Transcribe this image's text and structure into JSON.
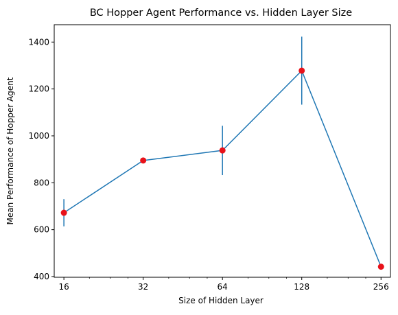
{
  "chart_data": {
    "type": "line",
    "title": "BC Hopper Agent Performance vs. Hidden Layer Size",
    "xlabel": "Size of Hidden Layer",
    "ylabel": "Mean Performance of Hopper Agent",
    "x_scale": "log2",
    "x": [
      16,
      32,
      64,
      128,
      256
    ],
    "x_tick_labels": [
      "16",
      "32",
      "64",
      "128",
      "256"
    ],
    "y_ticks": [
      400,
      600,
      800,
      1000,
      1200,
      1400
    ],
    "y_tick_labels": [
      "400",
      "600",
      "800",
      "1000",
      "1200",
      "1400"
    ],
    "xlim": [
      14.7,
      278
    ],
    "ylim": [
      397,
      1474
    ],
    "grid": false,
    "series": [
      {
        "values": [
          672,
          895,
          938,
          1278,
          442
        ],
        "errors": [
          58,
          5,
          105,
          145,
          5
        ],
        "line_color": "#1f77b4",
        "errorbar_color": "#1f77b4",
        "marker_color": "#e8121a"
      }
    ]
  }
}
